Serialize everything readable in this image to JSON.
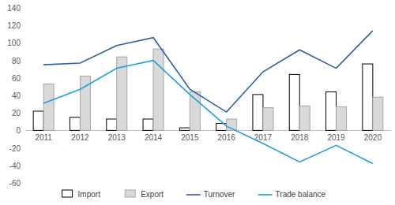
{
  "chart_data": {
    "type": "bar",
    "categories": [
      "2011",
      "2012",
      "2013",
      "2014",
      "2015",
      "2016",
      "2017",
      "2018",
      "2019",
      "2020"
    ],
    "series": [
      {
        "name": "Import",
        "type": "bar",
        "color": "#ffffff",
        "values": [
          22,
          15,
          13,
          13,
          3,
          8,
          41,
          64,
          44,
          76
        ]
      },
      {
        "name": "Export",
        "type": "bar",
        "color": "#d9d9d9",
        "values": [
          53,
          62,
          84,
          93,
          44,
          13,
          26,
          28,
          27,
          38
        ]
      },
      {
        "name": "Turnover",
        "type": "line",
        "color": "#2f5ea8",
        "values": [
          75,
          77,
          97,
          106,
          47,
          21,
          67,
          92,
          71,
          114
        ]
      },
      {
        "name": "Trade balance",
        "type": "line",
        "color": "#1ba1e2",
        "values": [
          31,
          47,
          71,
          80,
          41,
          5,
          -15,
          -36,
          -17,
          -38
        ]
      }
    ],
    "ylim": [
      -60,
      140
    ],
    "yticks": [
      -60,
      -40,
      -20,
      0,
      20,
      40,
      60,
      80,
      100,
      120,
      140
    ],
    "grid": false,
    "legend": "bottom"
  }
}
